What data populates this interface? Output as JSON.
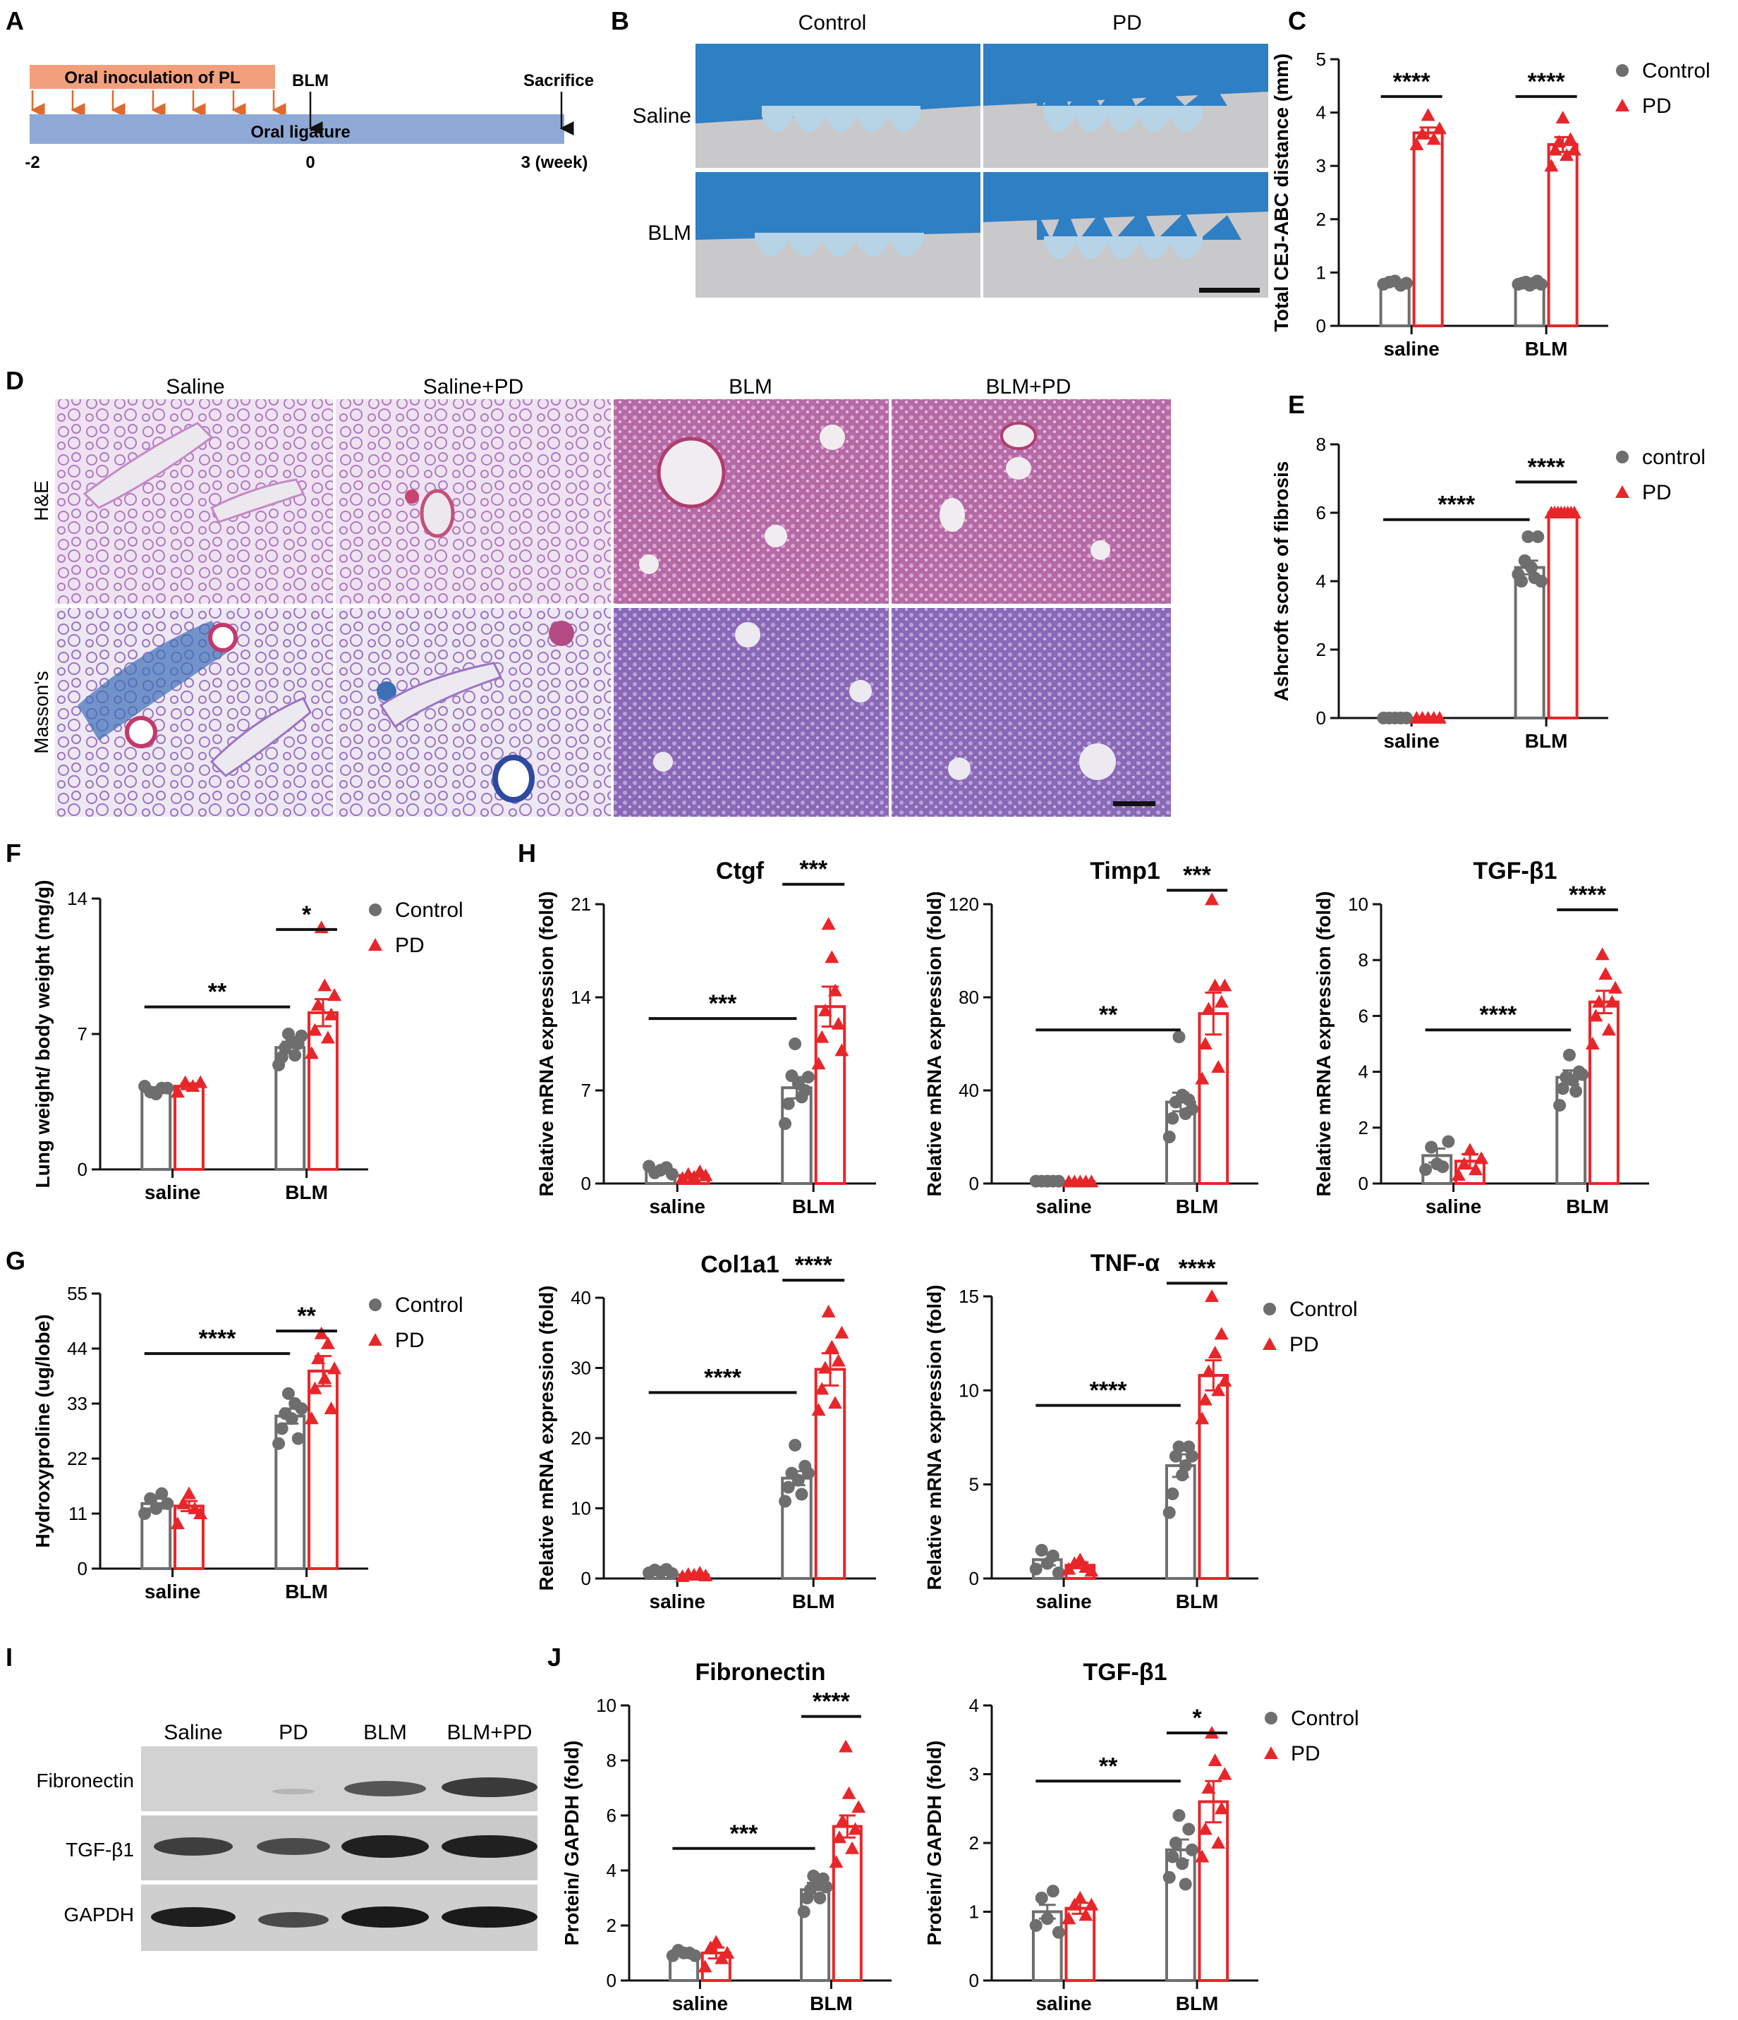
{
  "colors": {
    "control": "#6e6e6e",
    "pd": "#e8262a",
    "timeline_top": "#f2a07b",
    "timeline_bottom": "#8fa9d7",
    "arrow": "#e06a2e"
  },
  "panels": {
    "A": {
      "letter": "A",
      "top_bar_label": "Oral inoculation of PL",
      "bottom_bar_label": "Oral ligature",
      "blm_label": "BLM",
      "sacrifice_label": "Sacrifice",
      "ticks": [
        "-2",
        "0",
        "3 (week)"
      ]
    },
    "B": {
      "letter": "B",
      "col_labels": [
        "Control",
        "PD"
      ],
      "row_labels": [
        "Saline",
        "BLM"
      ]
    },
    "D": {
      "letter": "D",
      "col_labels": [
        "Saline",
        "Saline+PD",
        "BLM",
        "BLM+PD"
      ],
      "row_labels": [
        "H&E",
        "Masson's"
      ]
    },
    "H": {
      "letter": "H"
    },
    "I": {
      "letter": "I",
      "lane_labels": [
        "Saline",
        "PD",
        "BLM",
        "BLM+PD"
      ],
      "row_labels": [
        "Fibronectin",
        "TGF-β1",
        "GAPDH"
      ]
    },
    "J": {
      "letter": "J"
    }
  },
  "chart_data": [
    {
      "id": "C",
      "letter": "C",
      "type": "bar",
      "title": "",
      "ylabel": "Total CEJ-ABC distance (mm)",
      "ylim": [
        0,
        5
      ],
      "yticks": [
        "0",
        "1",
        "2",
        "3",
        "4",
        "5"
      ],
      "categories": [
        "saline",
        "BLM"
      ],
      "series": [
        {
          "name": "Control",
          "values": [
            0.8,
            0.8
          ],
          "sem": [
            0.03,
            0.03
          ],
          "points": [
            [
              0.78,
              0.82,
              0.84,
              0.76,
              0.8
            ],
            [
              0.78,
              0.8,
              0.82,
              0.76,
              0.8,
              0.84,
              0.78
            ]
          ]
        },
        {
          "name": "PD",
          "values": [
            3.62,
            3.4
          ],
          "sem": [
            0.1,
            0.14
          ],
          "points": [
            [
              3.4,
              3.6,
              3.95,
              3.5,
              3.7
            ],
            [
              3.0,
              3.3,
              3.45,
              3.9,
              3.2,
              3.5,
              3.3
            ]
          ]
        }
      ],
      "sig": [
        {
          "type": "pair",
          "cat": 0,
          "text": "****",
          "y": 4.3
        },
        {
          "type": "pair",
          "cat": 1,
          "text": "****",
          "y": 4.3
        }
      ],
      "legend": [
        "Control",
        "PD"
      ]
    },
    {
      "id": "E",
      "letter": "E",
      "type": "bar",
      "title": "",
      "ylabel": "Ashcroft score of fibrosis",
      "ylim": [
        0,
        8
      ],
      "yticks": [
        "0",
        "2",
        "4",
        "6",
        "8"
      ],
      "categories": [
        "saline",
        "BLM"
      ],
      "series": [
        {
          "name": "control",
          "values": [
            0,
            4.4
          ],
          "sem": [
            0,
            0.2
          ],
          "points": [
            [
              0,
              0,
              0,
              0,
              0
            ],
            [
              4.2,
              4.0,
              4.6,
              5.3,
              4.4,
              4.1,
              5.3,
              4.0
            ]
          ]
        },
        {
          "name": "PD",
          "values": [
            0,
            6
          ],
          "sem": [
            0,
            0
          ],
          "points": [
            [
              0,
              0,
              0,
              0,
              0
            ],
            [
              6,
              6,
              6,
              6,
              6,
              6,
              6,
              6
            ]
          ]
        }
      ],
      "sig": [
        {
          "type": "span",
          "text": "****",
          "y": 5.8
        },
        {
          "type": "pair",
          "cat": 1,
          "text": "****",
          "y": 6.9
        }
      ],
      "legend": [
        "control",
        "PD"
      ]
    },
    {
      "id": "F",
      "letter": "F",
      "type": "bar",
      "title": "",
      "ylabel": "Lung weight/ body weight (mg/g)",
      "ylim": [
        0,
        14
      ],
      "yticks": [
        "0",
        "7",
        "14"
      ],
      "categories": [
        "saline",
        "BLM"
      ],
      "series": [
        {
          "name": "Control",
          "values": [
            4.1,
            6.3
          ],
          "sem": [
            0.15,
            0.3
          ],
          "points": [
            [
              4.3,
              4.0,
              3.9,
              4.2,
              4.2
            ],
            [
              5.4,
              5.8,
              6.3,
              7.0,
              6.6,
              5.9,
              6.5,
              6.9
            ]
          ]
        },
        {
          "name": "PD",
          "values": [
            4.3,
            8.1
          ],
          "sem": [
            0.15,
            0.7
          ],
          "points": [
            [
              4.0,
              4.5,
              4.3,
              4.5
            ],
            [
              6.0,
              7.2,
              8.5,
              12.5,
              9.5,
              6.8,
              8.0,
              9.0
            ]
          ]
        }
      ],
      "sig": [
        {
          "type": "span",
          "text": "**",
          "y": 8.4
        },
        {
          "type": "pair",
          "cat": 1,
          "text": "*",
          "y": 12.4
        }
      ],
      "legend": [
        "Control",
        "PD"
      ]
    },
    {
      "id": "G",
      "letter": "G",
      "type": "bar",
      "title": "",
      "ylabel": "Hydroxyproline (ug/lobe)",
      "ylim": [
        0,
        55
      ],
      "yticks": [
        "0",
        "11",
        "22",
        "33",
        "44",
        "55"
      ],
      "categories": [
        "saline",
        "BLM"
      ],
      "series": [
        {
          "name": "Control",
          "values": [
            13,
            30.5
          ],
          "sem": [
            1,
            1.5
          ],
          "points": [
            [
              11,
              14,
              12,
              15,
              13
            ],
            [
              25,
              28,
              31,
              35,
              30,
              33,
              26,
              32
            ]
          ]
        },
        {
          "name": "PD",
          "values": [
            12.5,
            39.5
          ],
          "sem": [
            1,
            3
          ],
          "points": [
            [
              9,
              13,
              15,
              12,
              11
            ],
            [
              30,
              36,
              42,
              47,
              38,
              45,
              32,
              40
            ]
          ]
        }
      ],
      "sig": [
        {
          "type": "span",
          "text": "****",
          "y": 43
        },
        {
          "type": "pair",
          "cat": 1,
          "text": "**",
          "y": 47.5
        }
      ],
      "legend": [
        "Control",
        "PD"
      ]
    },
    {
      "id": "Ctgf",
      "title": "Ctgf",
      "type": "bar",
      "ylabel": "Relative mRNA expression (fold)",
      "ylim": [
        0,
        21
      ],
      "yticks": [
        "0",
        "7",
        "14",
        "21"
      ],
      "categories": [
        "saline",
        "BLM"
      ],
      "series": [
        {
          "name": "Control",
          "values": [
            1.0,
            7.2
          ],
          "sem": [
            0.15,
            0.8
          ],
          "points": [
            [
              1.3,
              0.8,
              1.0,
              1.2,
              0.7
            ],
            [
              4.5,
              6.0,
              8.1,
              10.5,
              7.5,
              6.5,
              7.0,
              8.0
            ]
          ]
        },
        {
          "name": "PD",
          "values": [
            0.6,
            13.3
          ],
          "sem": [
            0.1,
            1.5
          ],
          "points": [
            [
              0.4,
              0.7,
              0.5,
              0.9,
              0.6
            ],
            [
              9,
              11,
              13,
              19.5,
              17,
              14.5,
              12,
              10
            ]
          ]
        }
      ],
      "sig": [
        {
          "type": "span",
          "text": "***",
          "y": 12.4
        },
        {
          "type": "pair",
          "cat": 1,
          "text": "***",
          "y": 22.5
        }
      ]
    },
    {
      "id": "Timp1",
      "title": "Timp1",
      "type": "bar",
      "ylabel": "Relative mRNA expression (fold)",
      "ylim": [
        0,
        120
      ],
      "yticks": [
        "0",
        "40",
        "80",
        "120"
      ],
      "categories": [
        "saline",
        "BLM"
      ],
      "series": [
        {
          "name": "Control",
          "values": [
            1.0,
            35
          ],
          "sem": [
            0.1,
            4
          ],
          "points": [
            [
              1,
              1,
              1,
              1,
              1
            ],
            [
              20,
              28,
              35,
              63,
              38,
              30,
              36,
              32
            ]
          ]
        },
        {
          "name": "PD",
          "values": [
            0.8,
            73
          ],
          "sem": [
            0.1,
            9
          ],
          "points": [
            [
              0.8,
              0.8,
              0.8,
              0.8,
              0.8
            ],
            [
              45,
              60,
              75,
              122,
              85,
              50,
              78,
              85
            ]
          ]
        }
      ],
      "sig": [
        {
          "type": "span",
          "text": "**",
          "y": 66
        },
        {
          "type": "pair",
          "cat": 1,
          "text": "***",
          "y": 126
        }
      ]
    },
    {
      "id": "TGFb1",
      "title": "TGF-β1",
      "type": "bar",
      "ylabel": "Relative mRNA expression (fold)",
      "ylim": [
        0,
        10
      ],
      "yticks": [
        "0",
        "2",
        "4",
        "6",
        "8",
        "10"
      ],
      "categories": [
        "saline",
        "BLM"
      ],
      "series": [
        {
          "name": "Control",
          "values": [
            1.0,
            3.8
          ],
          "sem": [
            0.25,
            0.25
          ],
          "points": [
            [
              0.5,
              1.3,
              0.7,
              0.6,
              1.5
            ],
            [
              2.8,
              3.4,
              3.8,
              4.6,
              3.7,
              3.3,
              4.0,
              3.9
            ]
          ]
        },
        {
          "name": "PD",
          "values": [
            0.8,
            6.5
          ],
          "sem": [
            0.25,
            0.4
          ],
          "points": [
            [
              0.3,
              0.7,
              1.2,
              0.5,
              0.9
            ],
            [
              5.0,
              6.0,
              6.5,
              8.2,
              7.5,
              5.5,
              6.5,
              7.0
            ]
          ]
        }
      ],
      "sig": [
        {
          "type": "span",
          "text": "****",
          "y": 5.5
        },
        {
          "type": "pair",
          "cat": 1,
          "text": "****",
          "y": 9.8
        }
      ]
    },
    {
      "id": "Col1a1",
      "title": "Col1a1",
      "type": "bar",
      "ylabel": "Relative mRNA expression (fold)",
      "ylim": [
        0,
        40
      ],
      "yticks": [
        "0",
        "10",
        "20",
        "30",
        "40"
      ],
      "categories": [
        "saline",
        "BLM"
      ],
      "series": [
        {
          "name": "Control",
          "values": [
            1.0,
            14.3
          ],
          "sem": [
            0.15,
            1.0
          ],
          "points": [
            [
              0.8,
              1.2,
              0.9,
              1.3,
              0.7
            ],
            [
              11,
              13,
              15,
              19,
              14,
              12,
              16,
              15
            ]
          ]
        },
        {
          "name": "PD",
          "values": [
            0.5,
            29.8
          ],
          "sem": [
            0.1,
            2.3
          ],
          "points": [
            [
              0.3,
              0.6,
              0.5,
              0.8,
              0.4
            ],
            [
              24,
              27,
              30,
              38,
              33,
              25,
              31,
              35
            ]
          ]
        }
      ],
      "sig": [
        {
          "type": "span",
          "text": "****",
          "y": 26.5
        },
        {
          "type": "pair",
          "cat": 1,
          "text": "****",
          "y": 42.5
        }
      ]
    },
    {
      "id": "TNFa",
      "title": "TNF-α",
      "type": "bar",
      "ylabel": "Relative mRNA expression (fold)",
      "ylim": [
        0,
        15
      ],
      "yticks": [
        "0",
        "5",
        "10",
        "15"
      ],
      "categories": [
        "saline",
        "BLM"
      ],
      "series": [
        {
          "name": "Control",
          "values": [
            1.0,
            6.0
          ],
          "sem": [
            0.3,
            0.6
          ],
          "points": [
            [
              0.5,
              1.5,
              0.8,
              1.2,
              0.3
            ],
            [
              3.5,
              4.5,
              6.5,
              7.0,
              5.5,
              6.0,
              7.0,
              6.5
            ]
          ]
        },
        {
          "name": "PD",
          "values": [
            0.7,
            10.8
          ],
          "sem": [
            0.15,
            0.8
          ],
          "points": [
            [
              0.5,
              0.8,
              1.0,
              0.6,
              0.4
            ],
            [
              8.5,
              9.5,
              11,
              15,
              12,
              10,
              13,
              10.5
            ]
          ]
        }
      ],
      "sig": [
        {
          "type": "span",
          "text": "****",
          "y": 9.2
        },
        {
          "type": "pair",
          "cat": 1,
          "text": "****",
          "y": 15.7
        }
      ],
      "legend": [
        "Control",
        "PD"
      ]
    },
    {
      "id": "Fibronectin",
      "letter": "",
      "title": "Fibronectin",
      "type": "bar",
      "ylabel": "Protein/ GAPDH (fold)",
      "ylim": [
        0,
        10
      ],
      "yticks": [
        "0",
        "2",
        "4",
        "6",
        "8",
        "10"
      ],
      "categories": [
        "saline",
        "BLM"
      ],
      "series": [
        {
          "name": "Control",
          "values": [
            1.0,
            3.3
          ],
          "sem": [
            0.05,
            0.25
          ],
          "points": [
            [
              0.9,
              1.1,
              1.0,
              1.0,
              0.9
            ],
            [
              2.5,
              3.0,
              3.3,
              3.8,
              3.5,
              3.0,
              3.7,
              3.4
            ]
          ]
        },
        {
          "name": "PD",
          "values": [
            1.0,
            5.6
          ],
          "sem": [
            0.2,
            0.4
          ],
          "points": [
            [
              0.5,
              1.2,
              1.4,
              0.8,
              1.0
            ],
            [
              4.3,
              5.2,
              5.8,
              8.5,
              6.8,
              4.8,
              5.5,
              6.3
            ]
          ]
        }
      ],
      "sig": [
        {
          "type": "span",
          "text": "***",
          "y": 4.8
        },
        {
          "type": "pair",
          "cat": 1,
          "text": "****",
          "y": 9.6
        }
      ]
    },
    {
      "id": "TGFb1prot",
      "title": "TGF-β1",
      "type": "bar",
      "ylabel": "Protein/ GAPDH (fold)",
      "ylim": [
        0,
        4
      ],
      "yticks": [
        "0",
        "1",
        "2",
        "3",
        "4"
      ],
      "categories": [
        "saline",
        "BLM"
      ],
      "series": [
        {
          "name": "Control",
          "values": [
            1.0,
            1.9
          ],
          "sem": [
            0.1,
            0.15
          ],
          "points": [
            [
              0.8,
              1.2,
              0.9,
              1.3,
              0.7
            ],
            [
              1.5,
              1.8,
              2.0,
              2.4,
              1.7,
              1.4,
              2.2,
              1.9
            ]
          ]
        },
        {
          "name": "PD",
          "values": [
            1.05,
            2.6
          ],
          "sem": [
            0.08,
            0.3
          ],
          "points": [
            [
              0.9,
              1.1,
              1.2,
              0.95,
              1.1
            ],
            [
              1.8,
              2.2,
              2.8,
              3.6,
              3.2,
              2.0,
              2.5,
              3.0
            ]
          ]
        }
      ],
      "sig": [
        {
          "type": "span",
          "text": "**",
          "y": 2.9
        },
        {
          "type": "pair",
          "cat": 1,
          "text": "*",
          "y": 3.6
        }
      ],
      "legend": [
        "Control",
        "PD"
      ]
    }
  ]
}
